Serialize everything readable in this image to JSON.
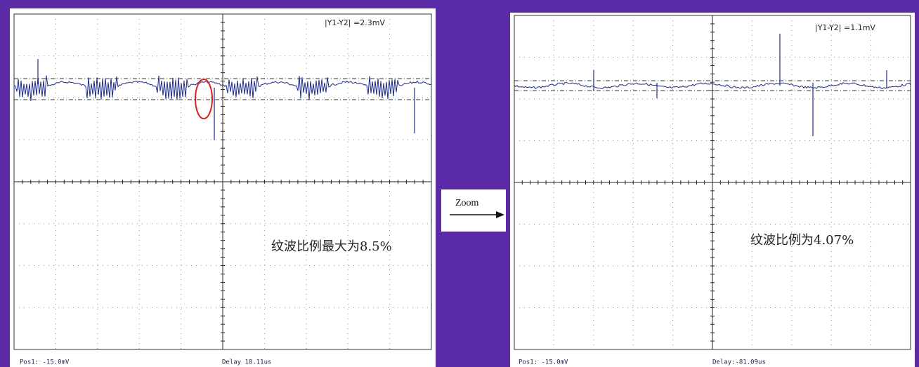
{
  "panels": [
    {
      "readout": "|Y1-Y2| =2.3mV",
      "annotation": "纹波比例最大为8.5%",
      "footer": {
        "position": "Pos1:  -15.0mV",
        "delay": "Delay 18.11us"
      }
    },
    {
      "readout": "|Y1-Y2| =1.1mV",
      "annotation": "纹波比例为4.07%",
      "footer": {
        "position": "Pos1:  -15.0mV",
        "delay": "Delay:-81.09us"
      }
    }
  ],
  "zoom_label": "Zoom"
}
